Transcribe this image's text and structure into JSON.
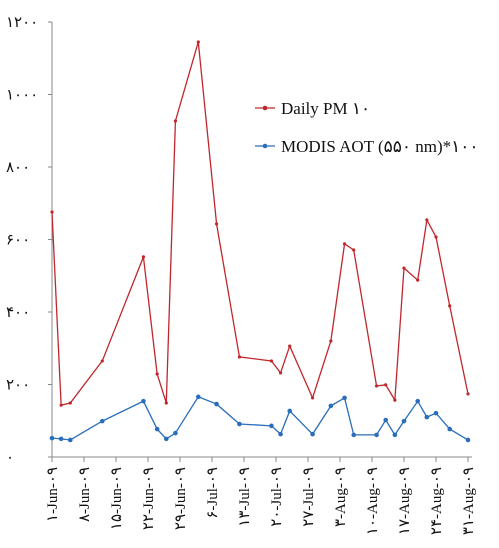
{
  "chart_data": {
    "type": "line",
    "x": [
      "2009-06-01",
      "2009-06-03",
      "2009-06-05",
      "2009-06-12",
      "2009-06-21",
      "2009-06-24",
      "2009-06-26",
      "2009-06-28",
      "2009-07-03",
      "2009-07-07",
      "2009-07-12",
      "2009-07-19",
      "2009-07-21",
      "2009-07-23",
      "2009-07-28",
      "2009-08-01",
      "2009-08-04",
      "2009-08-06",
      "2009-08-11",
      "2009-08-13",
      "2009-08-15",
      "2009-08-17",
      "2009-08-20",
      "2009-08-22",
      "2009-08-24",
      "2009-08-27",
      "2009-08-31"
    ],
    "series": [
      {
        "name": "Daily PM ۱۰",
        "color": "#c0272d",
        "values": [
          676,
          143,
          149,
          265,
          552,
          229,
          149,
          927,
          1145,
          643,
          276,
          265,
          232,
          306,
          163,
          320,
          588,
          571,
          196,
          199,
          157,
          521,
          488,
          654,
          607,
          417,
          174
        ]
      },
      {
        "name": "MODIS AOT (۵۵۰ nm)*۱۰۰",
        "color": "#2a6ebb",
        "values": [
          52,
          50,
          47,
          99,
          154,
          77,
          50,
          66,
          166,
          146,
          91,
          86,
          63,
          127,
          63,
          141,
          163,
          61,
          61,
          102,
          61,
          99,
          154,
          110,
          121,
          77,
          47
        ]
      }
    ],
    "xlim": [
      "2009-06-01",
      "2009-08-31"
    ],
    "xticks": [
      {
        "value": "2009-06-01",
        "label": "۱-Jun-۰۹"
      },
      {
        "value": "2009-06-08",
        "label": "۸-Jun-۰۹"
      },
      {
        "value": "2009-06-15",
        "label": "۱۵-Jun-۰۹"
      },
      {
        "value": "2009-06-22",
        "label": "۲۲-Jun-۰۹"
      },
      {
        "value": "2009-06-29",
        "label": "۲۹-Jun-۰۹"
      },
      {
        "value": "2009-07-06",
        "label": "۶-Jul-۰۹"
      },
      {
        "value": "2009-07-13",
        "label": "۱۳-Jul-۰۹"
      },
      {
        "value": "2009-07-20",
        "label": "۲۰-Jul-۰۹"
      },
      {
        "value": "2009-07-27",
        "label": "۲۷-Jul-۰۹"
      },
      {
        "value": "2009-08-03",
        "label": "۳-Aug-۰۹"
      },
      {
        "value": "2009-08-10",
        "label": "۱۰-Aug-۰۹"
      },
      {
        "value": "2009-08-17",
        "label": "۱۷-Aug-۰۹"
      },
      {
        "value": "2009-08-24",
        "label": "۲۴-Aug-۰۹"
      },
      {
        "value": "2009-08-31",
        "label": "۳۱-Aug-۰۹"
      }
    ],
    "ylim": [
      0,
      1200
    ],
    "yticks": [
      {
        "value": 0,
        "label": "۰"
      },
      {
        "value": 200,
        "label": "۲۰۰"
      },
      {
        "value": 400,
        "label": "۴۰۰"
      },
      {
        "value": 600,
        "label": "۶۰۰"
      },
      {
        "value": 800,
        "label": "۸۰۰"
      },
      {
        "value": 1000,
        "label": "۱۰۰۰"
      },
      {
        "value": 1200,
        "label": "۱۲۰۰"
      }
    ],
    "grid": false,
    "legend": "upper right"
  }
}
